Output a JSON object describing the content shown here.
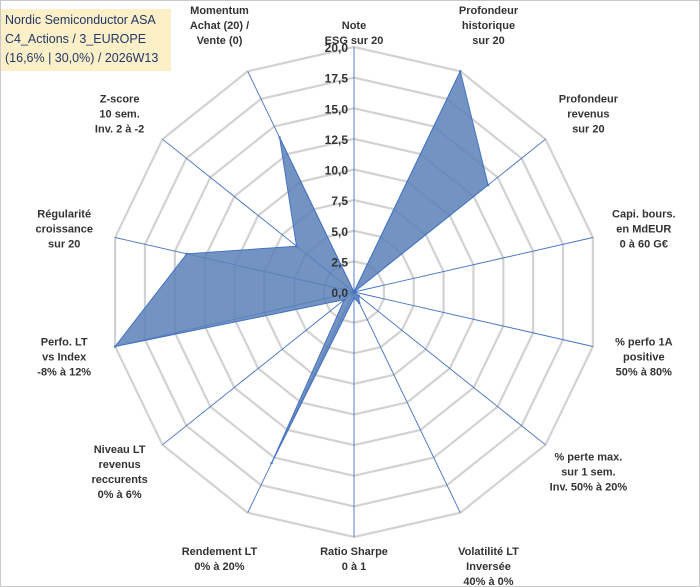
{
  "chart_data": {
    "type": "radar",
    "title_lines": [
      "Nordic Semiconductor ASA",
      "C4_Actions / 3_EUROPE",
      "(16,6% | 30,0%) / 2026W13"
    ],
    "rmax": 20,
    "ticks": [
      "0,0",
      "2,5",
      "5,0",
      "7,5",
      "10,0",
      "12,5",
      "15,0",
      "17,5",
      "20,0"
    ],
    "tick_values": [
      0,
      2.5,
      5,
      7.5,
      10,
      12.5,
      15,
      17.5,
      20
    ],
    "axes": [
      {
        "label": [
          "Note",
          "ESG sur 20"
        ],
        "value": 0
      },
      {
        "label": [
          "Profondeur",
          "historique",
          "sur 20"
        ],
        "value": 20
      },
      {
        "label": [
          "Profondeur",
          "revenus",
          "sur 20"
        ],
        "value": 14
      },
      {
        "label": [
          "Capi. bours.",
          "en MdEUR",
          "0 à 60 G€"
        ],
        "value": 0
      },
      {
        "label": [
          "% perfo 1A",
          "positive",
          "50% à 80%"
        ],
        "value": 0
      },
      {
        "label": [
          "% perte max.",
          "sur 1 sem.",
          "Inv. 50% à 20%"
        ],
        "value": 0.5
      },
      {
        "label": [
          "Volatilité LT",
          "Inversée",
          "40% à 0%"
        ],
        "value": 1
      },
      {
        "label": [
          "Ratio Sharpe",
          "0 à 1"
        ],
        "value": 0.5
      },
      {
        "label": [
          "Rendement LT",
          "0% à 20%"
        ],
        "value": 15.5
      },
      {
        "label": [
          "Niveau LT",
          "revenus",
          "reccurents",
          "0% à 6%"
        ],
        "value": 1
      },
      {
        "label": [
          "Perfo. LT",
          "vs Index",
          "-8% à 12%"
        ],
        "value": 20
      },
      {
        "label": [
          "Régularité",
          "croissance",
          "sur 20"
        ],
        "value": 14
      },
      {
        "label": [
          "Z-score",
          "10 sem.",
          "Inv. 2 à -2"
        ],
        "value": 6
      },
      {
        "label": [
          "Momentum",
          "Achat (20) /",
          "Vente (0)"
        ],
        "value": 14
      }
    ],
    "series": [
      {
        "name": "Nordic Semiconductor ASA",
        "color": "#5b80b8",
        "stroke": "#4472c4"
      }
    ],
    "grid": true
  }
}
